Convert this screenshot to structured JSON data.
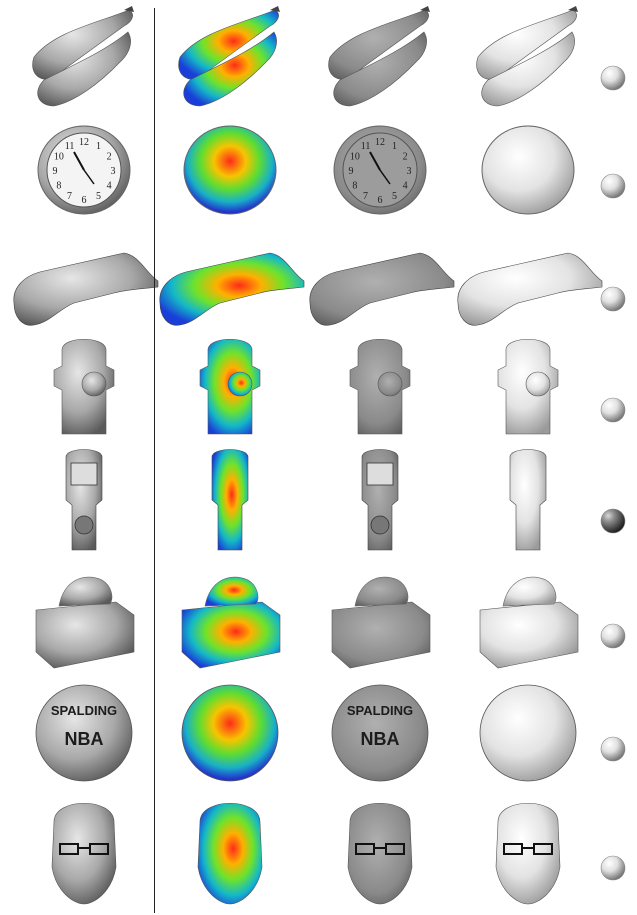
{
  "figure": {
    "columns": [
      "input-image",
      "depth-map",
      "albedo",
      "shading",
      "lighting"
    ],
    "rows": [
      {
        "object": "banana-bunch",
        "light_level": 0.75
      },
      {
        "object": "wall-clock",
        "light_level": 0.85,
        "clock_numerals": [
          "12",
          "1",
          "2",
          "3",
          "4",
          "5",
          "6",
          "7",
          "8",
          "9",
          "10",
          "11"
        ]
      },
      {
        "object": "glue-gun",
        "light_level": 0.6
      },
      {
        "object": "fire-hydrant",
        "light_level": 0.8
      },
      {
        "object": "parking-meter",
        "light_level": 0.3
      },
      {
        "object": "tissue-box",
        "light_level": 0.85
      },
      {
        "object": "basketball",
        "light_level": 0.85,
        "ball_text": [
          "SPALDING",
          "NBA"
        ]
      },
      {
        "object": "face",
        "light_level": 0.75
      }
    ]
  }
}
